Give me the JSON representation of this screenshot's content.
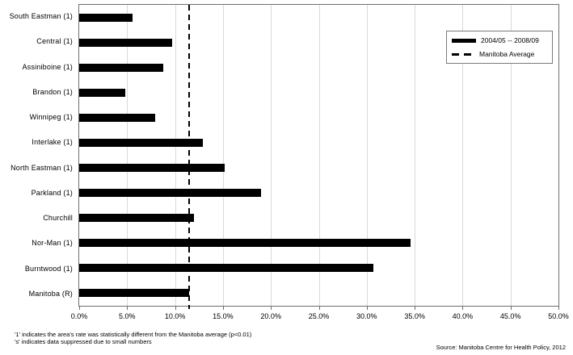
{
  "chart_data": {
    "type": "bar",
    "orientation": "horizontal",
    "title": "",
    "xlabel": "",
    "ylabel": "",
    "xlim": [
      0,
      50
    ],
    "grid": true,
    "legend_position": "top-right",
    "bar_color": "#000000",
    "grid_color": "#d9d9d9",
    "frame_color": "#6e6e6e",
    "categories": [
      "South Eastman (1)",
      "Central (1)",
      "Assiniboine (1)",
      "Brandon (1)",
      "Winnipeg (1)",
      "Interlake (1)",
      "North Eastman (1)",
      "Parkland (1)",
      "Churchill",
      "Nor-Man (1)",
      "Burntwood (1)",
      "Manitoba (R)"
    ],
    "series": [
      {
        "name": "2004/05 -- 2008/09",
        "values": [
          5.6,
          9.7,
          8.8,
          4.8,
          7.9,
          12.9,
          15.2,
          19.0,
          12.0,
          34.6,
          30.7,
          11.5
        ]
      }
    ],
    "reference_line": {
      "label": "Manitoba Average",
      "value": 11.5,
      "style": "dashed"
    },
    "x_ticks": [
      "0.0%",
      "5.0%",
      "10.0%",
      "15.0%",
      "20.0%",
      "25.0%",
      "30.0%",
      "35.0%",
      "40.0%",
      "45.0%",
      "50.0%"
    ],
    "x_tick_values": [
      0,
      5,
      10,
      15,
      20,
      25,
      30,
      35,
      40,
      45,
      50
    ]
  },
  "legend": {
    "series_label": "2004/05 -- 2008/09",
    "reference_label": "Manitoba Average"
  },
  "footnotes": [
    "'1' indicates the area's rate was statistically different from the Manitoba average (p<0.01)",
    "'s' indicates data suppressed due to small numbers"
  ],
  "source": "Source: Manitoba Centre for Health Policy, 2012"
}
